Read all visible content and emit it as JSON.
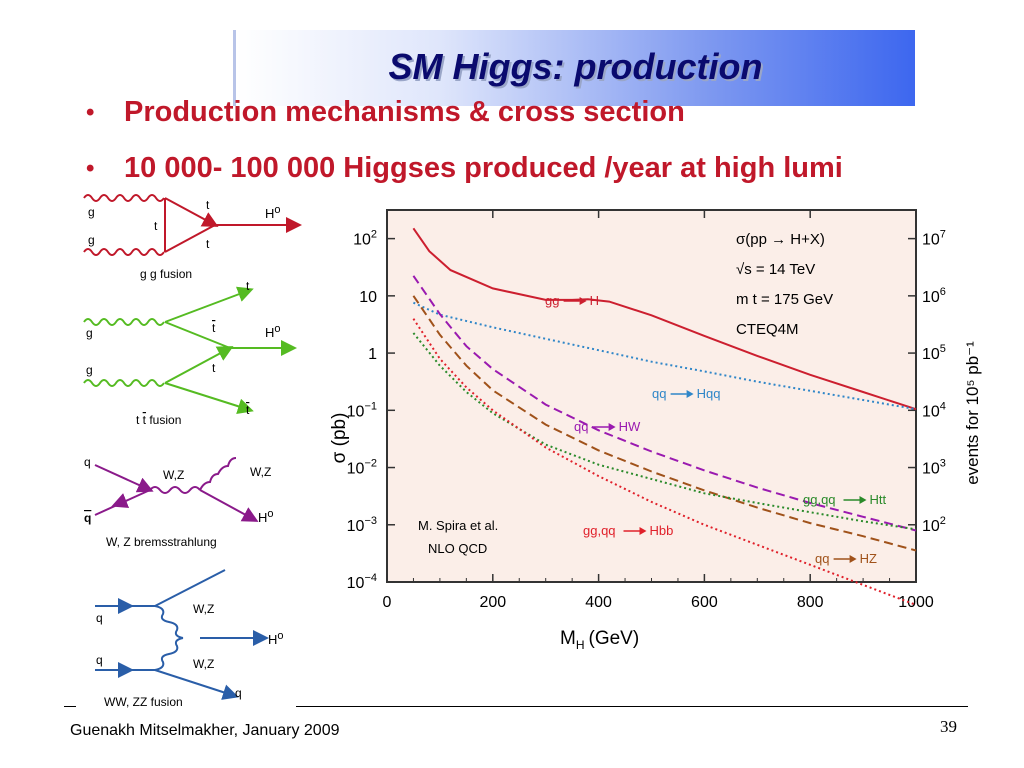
{
  "title": "SM Higgs: production",
  "bullets": [
    "Production mechanisms & cross section",
    "10 000- 100 000 Higgses produced /year at high lumi"
  ],
  "diagrams": {
    "gg": {
      "g_top": "g",
      "g_bot": "g",
      "t_upper": "t",
      "t_mid": "t",
      "t_lower": "t",
      "h": "H",
      "h_sup": "o",
      "caption": "g g fusion"
    },
    "ttbar": {
      "t_top": "t",
      "g_top": "g",
      "tbar_mid": "t",
      "h": "H",
      "h_sup": "o",
      "g_bot": "g",
      "t_mid2": "t",
      "tbar_bot": "t",
      "caption": "t t fusion"
    },
    "wz": {
      "q_top": "q",
      "wz_mid": "W,Z",
      "wz_out": "W,Z",
      "qbar": "q",
      "h": "H",
      "h_sup": "o",
      "caption": "W, Z bremsstrahlung"
    },
    "vbf": {
      "q_top": "q",
      "wz_top": "W,Z",
      "h": "H",
      "h_sup": "o",
      "q_bot": "q",
      "wz_bot": "W,Z",
      "q_out": "q",
      "caption": "WW, ZZ fusion"
    }
  },
  "chart_data": {
    "type": "line",
    "xlabel": "M",
    "xlabel_sub": "H",
    "xlabel_unit": "(GeV)",
    "ylabel": "σ (pb)",
    "y2label": "events for 10⁵ pb⁻¹",
    "xlim": [
      0,
      1000
    ],
    "ylim_log10": [
      -4,
      2.5
    ],
    "log_y": true,
    "x_ticks": [
      "0",
      "200",
      "400",
      "600",
      "800",
      "1000"
    ],
    "y_ticks": [
      {
        "exp": 2,
        "label": "10",
        "sup": "2"
      },
      {
        "exp": 1,
        "label": "10",
        "sup": ""
      },
      {
        "exp": 0,
        "label": "1",
        "sup": ""
      },
      {
        "exp": -1,
        "label": "10",
        "sup": "−1"
      },
      {
        "exp": -2,
        "label": "10",
        "sup": "−2"
      },
      {
        "exp": -3,
        "label": "10",
        "sup": "−3"
      },
      {
        "exp": -4,
        "label": "10",
        "sup": "−4"
      }
    ],
    "y2_ticks": [
      {
        "exp": 2,
        "label": "10",
        "sup": "7"
      },
      {
        "exp": 1,
        "label": "10",
        "sup": "6"
      },
      {
        "exp": 0,
        "label": "10",
        "sup": "5"
      },
      {
        "exp": -1,
        "label": "10",
        "sup": "4"
      },
      {
        "exp": -2,
        "label": "10",
        "sup": "3"
      },
      {
        "exp": -3,
        "label": "10",
        "sup": "2"
      }
    ],
    "info_lines": [
      "σ(pp → H+X)",
      "√s = 14 TeV",
      "m t = 175 GeV",
      "CTEQ4M"
    ],
    "credit_lines": [
      "M. Spira et al.",
      "NLO  QCD"
    ],
    "series": [
      {
        "name": "gg → H",
        "color": "#cc1f2f",
        "style": "solid",
        "x": [
          50,
          80,
          120,
          200,
          300,
          350,
          380,
          420,
          500,
          600,
          700,
          800,
          900,
          1000
        ],
        "log10y": [
          2.18,
          1.78,
          1.45,
          1.13,
          0.93,
          0.93,
          0.94,
          0.9,
          0.66,
          0.3,
          -0.05,
          -0.38,
          -0.68,
          -0.98
        ]
      },
      {
        "name": "qq → Hqq",
        "color": "#2f86c8",
        "style": "dotted",
        "x": [
          50,
          100,
          200,
          300,
          400,
          500,
          600,
          700,
          800,
          900,
          1000
        ],
        "log10y": [
          0.88,
          0.67,
          0.45,
          0.25,
          0.05,
          -0.15,
          -0.32,
          -0.5,
          -0.66,
          -0.82,
          -0.98
        ]
      },
      {
        "name": "qq → HW",
        "color": "#9a1ab0",
        "style": "dashed",
        "x": [
          50,
          100,
          150,
          200,
          300,
          400,
          500,
          600,
          700,
          800,
          900,
          1000
        ],
        "log10y": [
          1.35,
          0.68,
          0.12,
          -0.28,
          -0.9,
          -1.35,
          -1.72,
          -2.05,
          -2.35,
          -2.62,
          -2.86,
          -3.1
        ]
      },
      {
        "name": "qq → HZ",
        "color": "#a0521a",
        "style": "dashed",
        "x": [
          50,
          100,
          150,
          200,
          300,
          400,
          500,
          600,
          700,
          800,
          900,
          1000
        ],
        "log10y": [
          1.0,
          0.32,
          -0.22,
          -0.65,
          -1.25,
          -1.7,
          -2.07,
          -2.4,
          -2.7,
          -2.97,
          -3.2,
          -3.45
        ]
      },
      {
        "name": "gg,qq → Htt",
        "color": "#2a8a2a",
        "style": "dotted",
        "x": [
          50,
          100,
          150,
          200,
          300,
          400,
          500,
          600,
          700,
          800,
          900,
          1000
        ],
        "log10y": [
          0.35,
          -0.22,
          -0.68,
          -1.05,
          -1.6,
          -1.95,
          -2.2,
          -2.45,
          -2.62,
          -2.78,
          -2.94,
          -3.08
        ]
      },
      {
        "name": "gg,qq → Hbb",
        "color": "#e0202a",
        "style": "dotted",
        "x": [
          50,
          100,
          150,
          200,
          300,
          400,
          500,
          600,
          700,
          800,
          900,
          1000
        ],
        "log10y": [
          0.6,
          -0.1,
          -0.6,
          -1.0,
          -1.65,
          -2.15,
          -2.6,
          -3.0,
          -3.35,
          -3.7,
          -4.05,
          -4.4
        ]
      }
    ],
    "curve_labels": [
      {
        "a": "gg",
        "b": "H",
        "color": "#cc1f2f"
      },
      {
        "a": "qq",
        "b": "Hqq",
        "color": "#2f86c8"
      },
      {
        "a": "qq",
        "b": "HW",
        "color": "#9a1ab0"
      },
      {
        "a": "gg,qq",
        "b": "Htt",
        "color": "#2a8a2a"
      },
      {
        "a": "gg,qq",
        "b": "Hbb",
        "color": "#e0202a"
      },
      {
        "a": "qq",
        "b": "HZ",
        "color": "#a0521a"
      }
    ],
    "colors": {
      "background": "#fbeee8",
      "frame": "#333333"
    }
  },
  "footer": {
    "author": "Guenakh Mitselmakher, January 2009",
    "page": "39"
  }
}
